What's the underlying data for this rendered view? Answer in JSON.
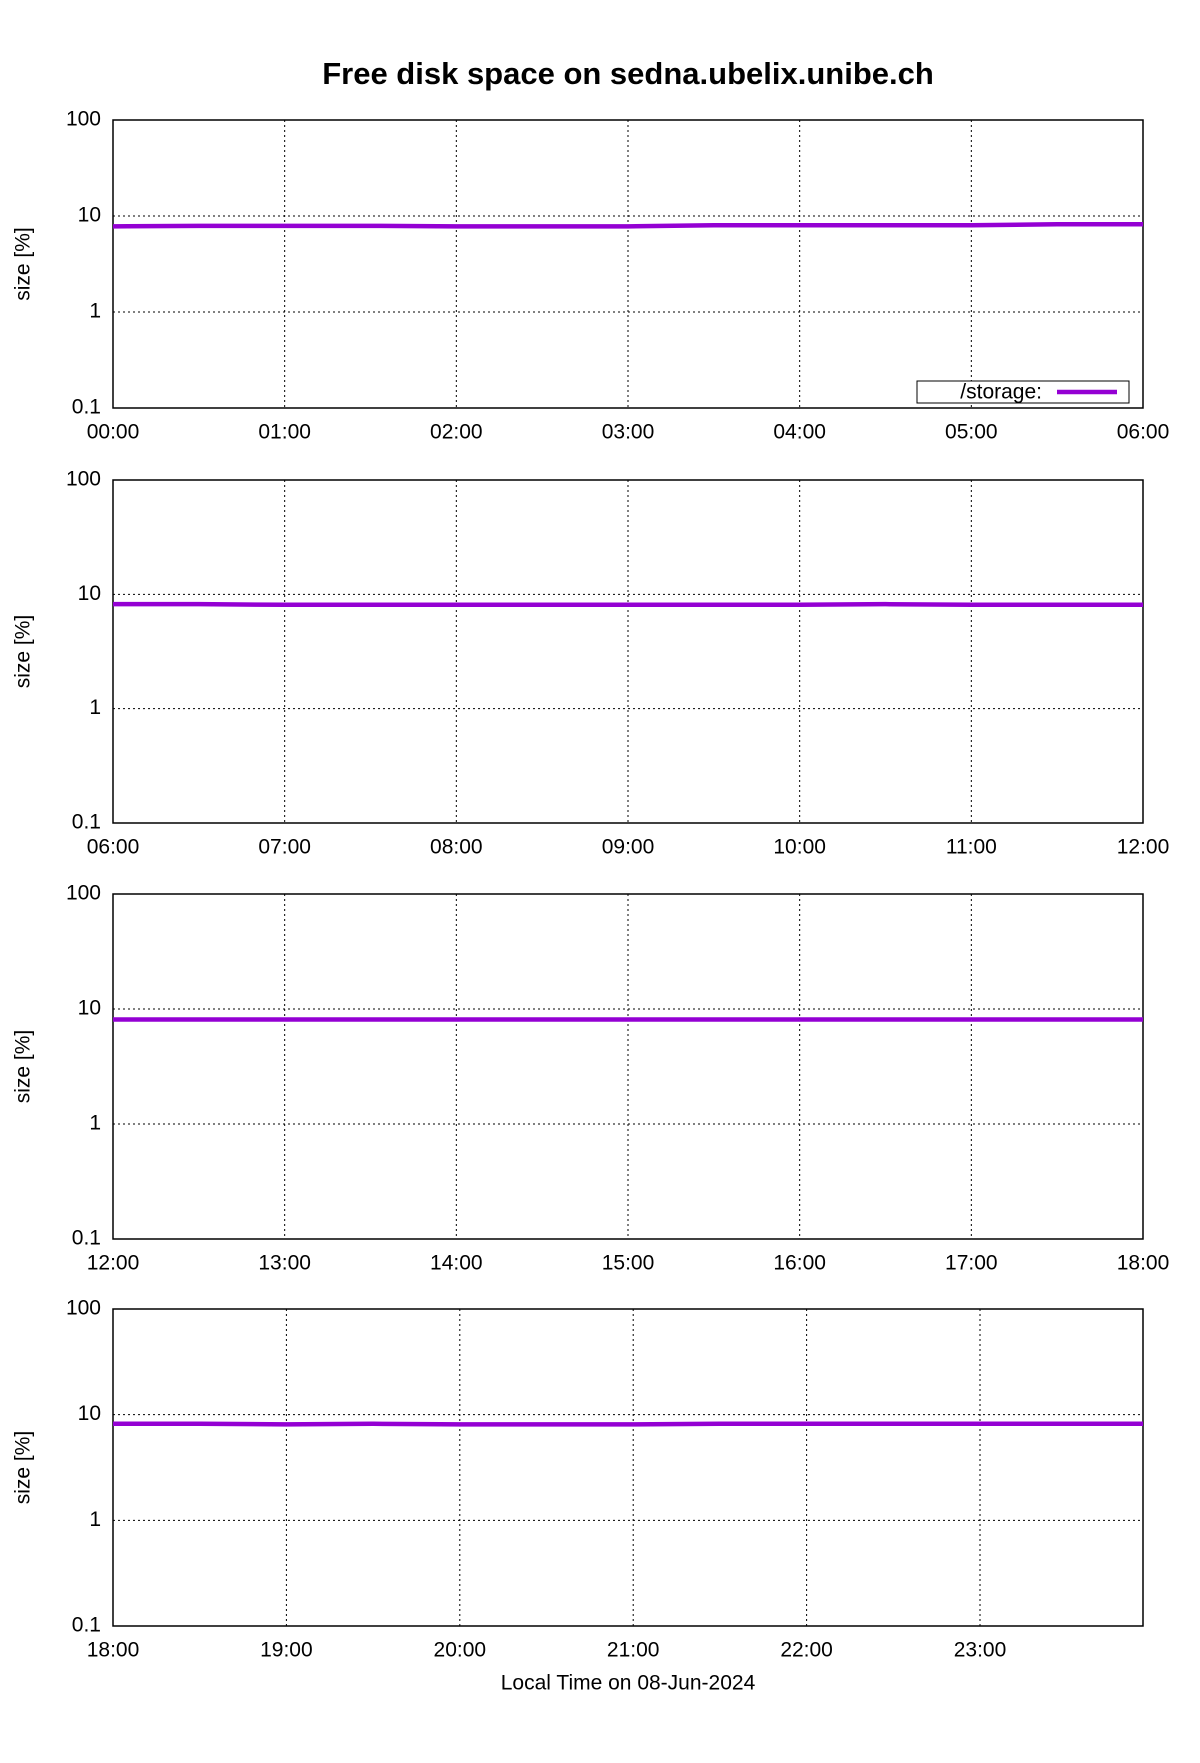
{
  "chart_data": [
    {
      "type": "line",
      "title": "Free disk space on sedna.ubelix.unibe.ch",
      "y_label": "size [%]",
      "log_y": true,
      "grid": true,
      "legend": "bottom right",
      "ylim": [
        0.1,
        100
      ],
      "yticks": [
        0.1,
        1,
        10,
        100
      ],
      "xlim": [
        0,
        6
      ],
      "xticks": [
        {
          "value": 0,
          "label": "00:00"
        },
        {
          "value": 1,
          "label": "01:00"
        },
        {
          "value": 2,
          "label": "02:00"
        },
        {
          "value": 3,
          "label": "03:00"
        },
        {
          "value": 4,
          "label": "04:00"
        },
        {
          "value": 5,
          "label": "05:00"
        },
        {
          "value": 6,
          "label": "06:00"
        }
      ],
      "x": [
        0,
        0.5,
        1,
        1.5,
        2,
        2.5,
        3,
        3.5,
        4,
        4.5,
        5,
        5.5,
        6
      ],
      "series": [
        {
          "name": "/storage:",
          "color": "#9400d3",
          "values": [
            7.8,
            7.9,
            7.9,
            7.9,
            7.8,
            7.8,
            7.8,
            8.0,
            8.0,
            8.0,
            8.0,
            8.2,
            8.2
          ]
        }
      ]
    },
    {
      "type": "line",
      "y_label": "size [%]",
      "log_y": true,
      "grid": true,
      "ylim": [
        0.1,
        100
      ],
      "yticks": [
        0.1,
        1,
        10,
        100
      ],
      "xlim": [
        6,
        12
      ],
      "xticks": [
        {
          "value": 6,
          "label": "06:00"
        },
        {
          "value": 7,
          "label": "07:00"
        },
        {
          "value": 8,
          "label": "08:00"
        },
        {
          "value": 9,
          "label": "09:00"
        },
        {
          "value": 10,
          "label": "10:00"
        },
        {
          "value": 11,
          "label": "11:00"
        },
        {
          "value": 12,
          "label": "12:00"
        }
      ],
      "x": [
        6,
        6.5,
        7,
        7.5,
        8,
        8.5,
        9,
        9.5,
        10,
        10.5,
        11,
        11.5,
        12
      ],
      "series": [
        {
          "color": "#9400d3",
          "values": [
            8.2,
            8.2,
            8.1,
            8.1,
            8.1,
            8.1,
            8.1,
            8.1,
            8.1,
            8.2,
            8.1,
            8.1,
            8.1
          ]
        }
      ]
    },
    {
      "type": "line",
      "y_label": "size [%]",
      "log_y": true,
      "grid": true,
      "ylim": [
        0.1,
        100
      ],
      "yticks": [
        0.1,
        1,
        10,
        100
      ],
      "xlim": [
        12,
        18
      ],
      "xticks": [
        {
          "value": 12,
          "label": "12:00"
        },
        {
          "value": 13,
          "label": "13:00"
        },
        {
          "value": 14,
          "label": "14:00"
        },
        {
          "value": 15,
          "label": "15:00"
        },
        {
          "value": 16,
          "label": "16:00"
        },
        {
          "value": 17,
          "label": "17:00"
        },
        {
          "value": 18,
          "label": "18:00"
        }
      ],
      "x": [
        12,
        12.5,
        13,
        13.5,
        14,
        14.5,
        15,
        15.5,
        16,
        16.5,
        17,
        17.5,
        18
      ],
      "series": [
        {
          "color": "#9400d3",
          "values": [
            8.1,
            8.1,
            8.1,
            8.1,
            8.1,
            8.1,
            8.1,
            8.1,
            8.1,
            8.1,
            8.1,
            8.1,
            8.1
          ]
        }
      ]
    },
    {
      "type": "line",
      "y_label": "size [%]",
      "x_label": "Local Time on 08-Jun-2024",
      "log_y": true,
      "grid": true,
      "ylim": [
        0.1,
        100
      ],
      "yticks": [
        0.1,
        1,
        10,
        100
      ],
      "xlim": [
        18,
        23.94
      ],
      "xticks": [
        {
          "value": 18,
          "label": "18:00"
        },
        {
          "value": 19,
          "label": "19:00"
        },
        {
          "value": 20,
          "label": "20:00"
        },
        {
          "value": 21,
          "label": "21:00"
        },
        {
          "value": 22,
          "label": "22:00"
        },
        {
          "value": 23,
          "label": "23:00"
        }
      ],
      "x": [
        18,
        18.5,
        19,
        19.5,
        20,
        20.5,
        21,
        21.5,
        22,
        22.5,
        23,
        23.5,
        23.94
      ],
      "series": [
        {
          "color": "#9400d3",
          "values": [
            8.2,
            8.2,
            8.1,
            8.2,
            8.1,
            8.1,
            8.1,
            8.2,
            8.2,
            8.2,
            8.2,
            8.2,
            8.2
          ]
        }
      ]
    }
  ]
}
